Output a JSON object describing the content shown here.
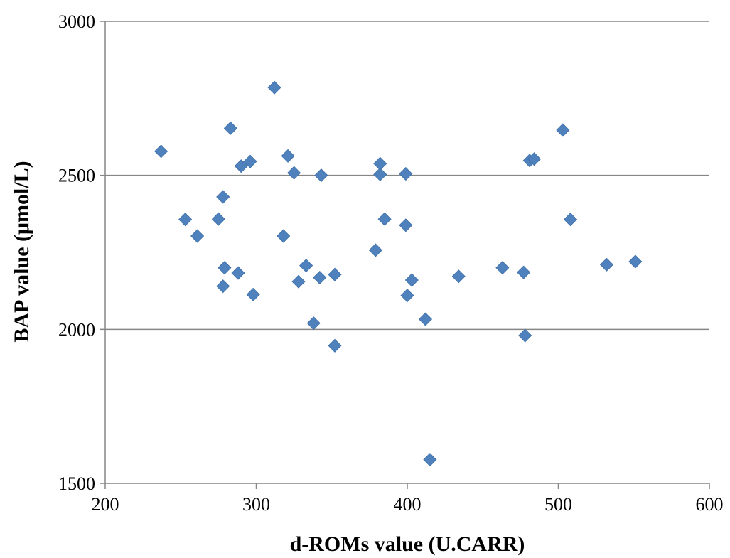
{
  "chart_data": {
    "type": "scatter",
    "title": "",
    "xlabel": "d-ROMs value (U.CARR)",
    "ylabel": "BAP value (μmol/L)",
    "xlim": [
      200,
      600
    ],
    "ylim": [
      1500,
      3000
    ],
    "x_ticks": [
      200,
      300,
      400,
      500,
      600
    ],
    "x_tick_labels": [
      "200",
      "300",
      "400",
      "500",
      "600"
    ],
    "y_ticks": [
      1500,
      2000,
      2500,
      3000
    ],
    "y_tick_labels": [
      "1500",
      "2000",
      "2500",
      "3000"
    ],
    "grid": "horizontal",
    "legend": "none",
    "marker": "diamond",
    "marker_color": "#4F81BD",
    "series": [
      {
        "points": [
          [
            237,
            2578
          ],
          [
            253,
            2357
          ],
          [
            261,
            2303
          ],
          [
            275,
            2358
          ],
          [
            278,
            2430
          ],
          [
            279,
            2200
          ],
          [
            278,
            2140
          ],
          [
            283,
            2653
          ],
          [
            288,
            2183
          ],
          [
            290,
            2530
          ],
          [
            296,
            2545
          ],
          [
            298,
            2113
          ],
          [
            312,
            2785
          ],
          [
            318,
            2303
          ],
          [
            321,
            2563
          ],
          [
            325,
            2508
          ],
          [
            328,
            2155
          ],
          [
            333,
            2207
          ],
          [
            338,
            2020
          ],
          [
            342,
            2168
          ],
          [
            343,
            2500
          ],
          [
            352,
            2178
          ],
          [
            352,
            1947
          ],
          [
            379,
            2257
          ],
          [
            382,
            2538
          ],
          [
            382,
            2503
          ],
          [
            385,
            2358
          ],
          [
            399,
            2505
          ],
          [
            399,
            2338
          ],
          [
            400,
            2110
          ],
          [
            403,
            2160
          ],
          [
            412,
            2033
          ],
          [
            415,
            1577
          ],
          [
            434,
            2172
          ],
          [
            463,
            2200
          ],
          [
            477,
            2185
          ],
          [
            478,
            1980
          ],
          [
            481,
            2548
          ],
          [
            484,
            2553
          ],
          [
            503,
            2647
          ],
          [
            508,
            2357
          ],
          [
            532,
            2210
          ],
          [
            551,
            2220
          ]
        ]
      }
    ]
  }
}
